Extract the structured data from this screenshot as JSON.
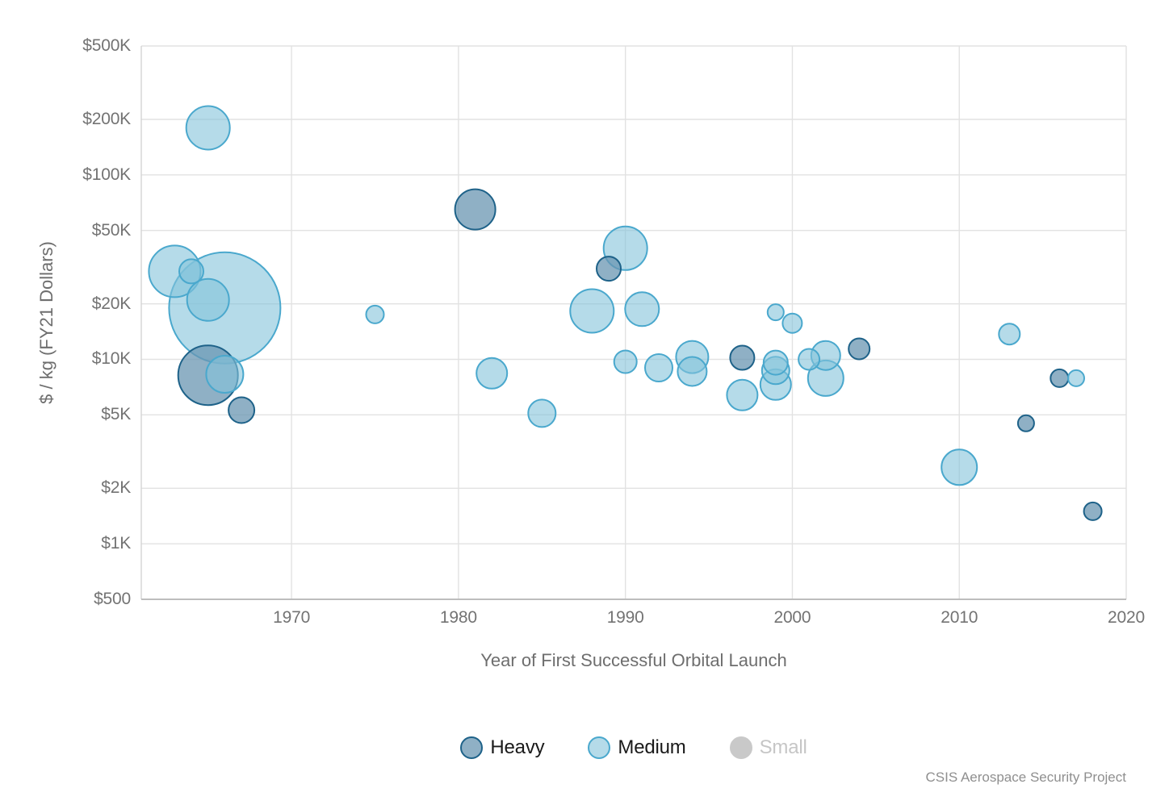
{
  "chart_data": {
    "type": "scatter",
    "title": "",
    "x_label": "Year of First Successful Orbital Launch",
    "y_label": "$ / kg (FY21 Dollars)",
    "x_range": [
      1961,
      2020
    ],
    "x_ticks": [
      1970,
      1980,
      1990,
      2000,
      2010,
      2020
    ],
    "y_scale": "log",
    "y_range": [
      500,
      500000
    ],
    "y_ticks": [
      {
        "label": "$500K",
        "value": 500000
      },
      {
        "label": "$200K",
        "value": 200000
      },
      {
        "label": "$100K",
        "value": 100000
      },
      {
        "label": "$50K",
        "value": 50000
      },
      {
        "label": "$20K",
        "value": 20000
      },
      {
        "label": "$10K",
        "value": 10000
      },
      {
        "label": "$5K",
        "value": 5000
      },
      {
        "label": "$2K",
        "value": 2000
      },
      {
        "label": "$1K",
        "value": 1000
      },
      {
        "label": "$500",
        "value": 500
      }
    ],
    "size_note": "bubble size not labeled on chart; r is on-screen radius in px",
    "series": [
      {
        "name": "Heavy",
        "fill": "#6a96b2",
        "fill_opacity": 0.75,
        "stroke": "#1e6289",
        "points": [
          {
            "year": 1965,
            "usd_per_kg": 8200,
            "r": 37
          },
          {
            "year": 1967,
            "usd_per_kg": 5300,
            "r": 16
          },
          {
            "year": 1981,
            "usd_per_kg": 65000,
            "r": 25
          },
          {
            "year": 1989,
            "usd_per_kg": 31000,
            "r": 15
          },
          {
            "year": 1997,
            "usd_per_kg": 10200,
            "r": 15
          },
          {
            "year": 2004,
            "usd_per_kg": 11400,
            "r": 13
          },
          {
            "year": 2014,
            "usd_per_kg": 4500,
            "r": 10
          },
          {
            "year": 2016,
            "usd_per_kg": 7900,
            "r": 11
          },
          {
            "year": 2018,
            "usd_per_kg": 1500,
            "r": 11
          }
        ]
      },
      {
        "name": "Medium",
        "fill": "#84c3da",
        "fill_opacity": 0.6,
        "stroke": "#4aa8cd",
        "points": [
          {
            "year": 1963,
            "usd_per_kg": 30000,
            "r": 32
          },
          {
            "year": 1964,
            "usd_per_kg": 30000,
            "r": 15
          },
          {
            "year": 1965,
            "usd_per_kg": 180000,
            "r": 27
          },
          {
            "year": 1965,
            "usd_per_kg": 21000,
            "r": 26
          },
          {
            "year": 1966,
            "usd_per_kg": 19000,
            "r": 69
          },
          {
            "year": 1966,
            "usd_per_kg": 8300,
            "r": 23
          },
          {
            "year": 1975,
            "usd_per_kg": 17500,
            "r": 11
          },
          {
            "year": 1982,
            "usd_per_kg": 8400,
            "r": 19
          },
          {
            "year": 1985,
            "usd_per_kg": 5100,
            "r": 17
          },
          {
            "year": 1988,
            "usd_per_kg": 18300,
            "r": 27
          },
          {
            "year": 1990,
            "usd_per_kg": 40000,
            "r": 27
          },
          {
            "year": 1990,
            "usd_per_kg": 9700,
            "r": 14
          },
          {
            "year": 1991,
            "usd_per_kg": 18700,
            "r": 21
          },
          {
            "year": 1992,
            "usd_per_kg": 9000,
            "r": 17
          },
          {
            "year": 1994,
            "usd_per_kg": 10300,
            "r": 20
          },
          {
            "year": 1994,
            "usd_per_kg": 8600,
            "r": 18
          },
          {
            "year": 1997,
            "usd_per_kg": 6400,
            "r": 19
          },
          {
            "year": 1999,
            "usd_per_kg": 18000,
            "r": 10
          },
          {
            "year": 1999,
            "usd_per_kg": 9600,
            "r": 15
          },
          {
            "year": 1999,
            "usd_per_kg": 8700,
            "r": 17
          },
          {
            "year": 1999,
            "usd_per_kg": 7300,
            "r": 19
          },
          {
            "year": 2000,
            "usd_per_kg": 15700,
            "r": 12
          },
          {
            "year": 2001,
            "usd_per_kg": 10000,
            "r": 13
          },
          {
            "year": 2002,
            "usd_per_kg": 10500,
            "r": 18
          },
          {
            "year": 2002,
            "usd_per_kg": 7900,
            "r": 22
          },
          {
            "year": 2010,
            "usd_per_kg": 2600,
            "r": 22
          },
          {
            "year": 2013,
            "usd_per_kg": 13700,
            "r": 13
          },
          {
            "year": 2017,
            "usd_per_kg": 7900,
            "r": 10
          }
        ]
      },
      {
        "name": "Small",
        "fill": "#c9c9c9",
        "fill_opacity": 1,
        "stroke": "#c9c9c9",
        "points": []
      }
    ]
  },
  "legend": {
    "items": [
      {
        "label": "Heavy",
        "swatch_fill": "#8fb0c5",
        "swatch_stroke": "#1e6289",
        "text_color": "#1a1a1a",
        "active": true
      },
      {
        "label": "Medium",
        "swatch_fill": "#b5dbe9",
        "swatch_stroke": "#4aa8cd",
        "text_color": "#1a1a1a",
        "active": true
      },
      {
        "label": "Small",
        "swatch_fill": "#c9c9c9",
        "swatch_stroke": "#c9c9c9",
        "text_color": "#c6c6c6",
        "active": false
      }
    ]
  },
  "footer": {
    "credit": "CSIS Aerospace Security Project"
  },
  "colors": {
    "gridline": "#e2e2e2",
    "left_axis_line": "#d4d4d4",
    "bottom_axis_line": "#bdbdbd",
    "tick_label": "#737373",
    "axis_title": "#6e6e6e",
    "credit_text": "#8f8f8f",
    "background": "#ffffff"
  }
}
